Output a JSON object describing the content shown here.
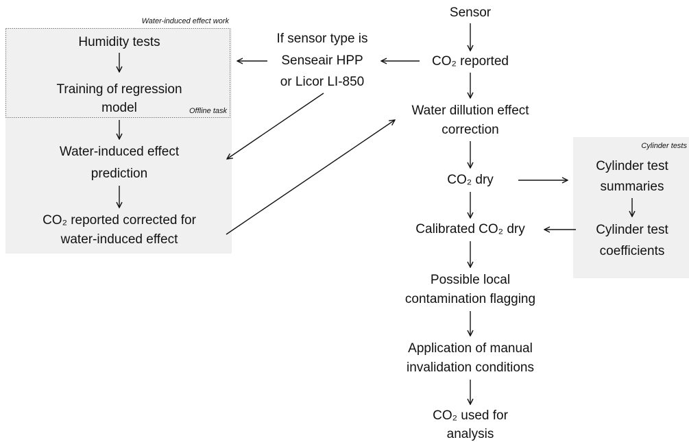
{
  "groups": [
    {
      "title": "Water-induced effect work",
      "subtitle": "Offline task"
    },
    {
      "title": "Cylinder tests"
    }
  ],
  "nodes": [
    {
      "lines": [
        "Sensor"
      ]
    },
    {
      "lines": [
        "CO₂ reported"
      ]
    },
    {
      "lines": [
        "Water dillution effect",
        "correction"
      ]
    },
    {
      "lines": [
        "CO₂ dry"
      ]
    },
    {
      "lines": [
        "Calibrated CO₂ dry"
      ]
    },
    {
      "lines": [
        "Possible local",
        "contamination flagging"
      ]
    },
    {
      "lines": [
        "Application of manual",
        "invalidation conditions"
      ]
    },
    {
      "lines": [
        "CO₂ used for",
        "analysis"
      ]
    },
    {
      "lines": [
        "If sensor type is",
        "Senseair HPP",
        "or Licor LI-850"
      ]
    },
    {
      "lines": [
        "Humidity tests"
      ]
    },
    {
      "lines": [
        "Training of regression",
        "model"
      ]
    },
    {
      "lines": [
        "Water-induced effect",
        "prediction"
      ]
    },
    {
      "lines": [
        "CO₂ reported corrected for",
        "water-induced effect"
      ]
    },
    {
      "lines": [
        "Cylinder test",
        "summaries"
      ]
    },
    {
      "lines": [
        "Cylinder test",
        "coefficients"
      ]
    }
  ]
}
